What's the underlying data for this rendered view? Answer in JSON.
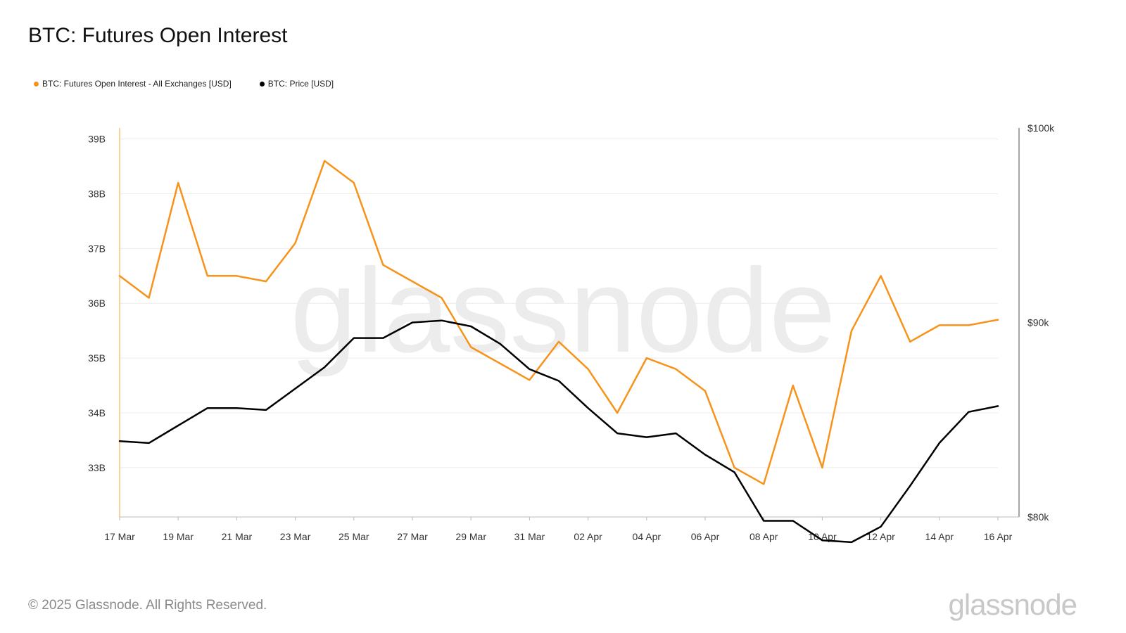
{
  "title": "BTC: Futures Open Interest",
  "legend": [
    {
      "label": "BTC: Futures Open Interest - All Exchanges [USD]",
      "color": "#f7931a"
    },
    {
      "label": "BTC: Price [USD]",
      "color": "#000000"
    }
  ],
  "footer": "© 2025 Glassnode. All Rights Reserved.",
  "logo": "glassnode",
  "watermark": "glassnode",
  "chart_data": {
    "type": "line",
    "x": [
      "17 Mar",
      "18 Mar",
      "19 Mar",
      "20 Mar",
      "21 Mar",
      "22 Mar",
      "23 Mar",
      "24 Mar",
      "25 Mar",
      "26 Mar",
      "27 Mar",
      "28 Mar",
      "29 Mar",
      "30 Mar",
      "31 Mar",
      "01 Apr",
      "02 Apr",
      "03 Apr",
      "04 Apr",
      "05 Apr",
      "06 Apr",
      "07 Apr",
      "08 Apr",
      "09 Apr",
      "10 Apr",
      "11 Apr",
      "12 Apr",
      "13 Apr",
      "14 Apr",
      "15 Apr",
      "16 Apr"
    ],
    "x_tick_labels": [
      "17 Mar",
      "19 Mar",
      "21 Mar",
      "23 Mar",
      "25 Mar",
      "27 Mar",
      "29 Mar",
      "31 Mar",
      "02 Apr",
      "04 Apr",
      "06 Apr",
      "08 Apr",
      "10 Apr",
      "12 Apr",
      "14 Apr",
      "16 Apr"
    ],
    "series": [
      {
        "name": "BTC: Futures Open Interest - All Exchanges [USD]",
        "axis": "left",
        "color": "#f7931a",
        "values": [
          36.5,
          36.1,
          38.2,
          36.5,
          36.5,
          36.4,
          37.1,
          38.6,
          38.2,
          36.7,
          36.4,
          36.1,
          35.2,
          34.9,
          34.6,
          35.3,
          34.8,
          34.0,
          35.0,
          34.8,
          34.4,
          33.0,
          32.7,
          34.5,
          33.0,
          35.5,
          36.5,
          35.3,
          35.6,
          35.6,
          35.7
        ]
      },
      {
        "name": "BTC: Price [USD]",
        "axis": "right",
        "color": "#000000",
        "values": [
          83900,
          83800,
          84700,
          85600,
          85600,
          85500,
          86600,
          87700,
          89200,
          89200,
          90000,
          90100,
          89800,
          88900,
          87600,
          87000,
          85600,
          84300,
          84100,
          84300,
          83200,
          82300,
          79800,
          79800,
          78800,
          78700,
          79500,
          81600,
          83800,
          85400,
          85700
        ]
      }
    ],
    "y_left": {
      "ticks": [
        33,
        34,
        35,
        36,
        37,
        38,
        39
      ],
      "tick_labels": [
        "33B",
        "34B",
        "35B",
        "36B",
        "37B",
        "38B",
        "39B"
      ],
      "range": [
        32.1,
        39.2
      ]
    },
    "y_right": {
      "ticks": [
        80000,
        90000,
        100000
      ],
      "tick_labels": [
        "$80k",
        "$90k",
        "$100k"
      ],
      "range": [
        80000,
        100000
      ]
    },
    "grid": true,
    "legend_position": "top-left"
  }
}
